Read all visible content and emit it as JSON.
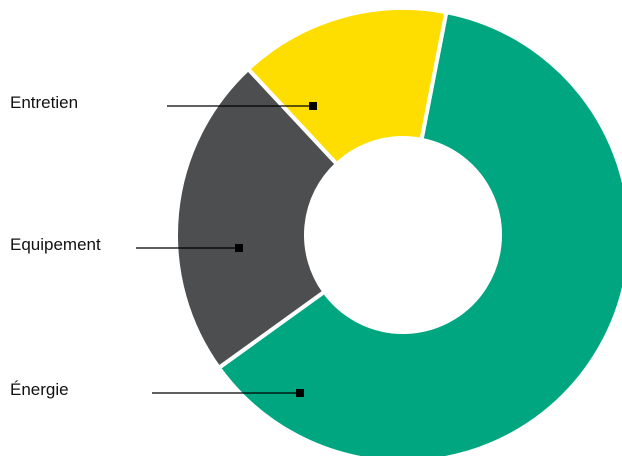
{
  "chart_data": {
    "type": "pie",
    "style": "donut",
    "categories": [
      "Énergie",
      "Entretien",
      "Equipement"
    ],
    "values": [
      62,
      23,
      15
    ],
    "unit": "%",
    "colors": {
      "Énergie": "#00a680",
      "Entretien": "#4d4e50",
      "Equipement": "#fedd00"
    },
    "title": "",
    "legend": "leader-line labels on the left"
  }
}
